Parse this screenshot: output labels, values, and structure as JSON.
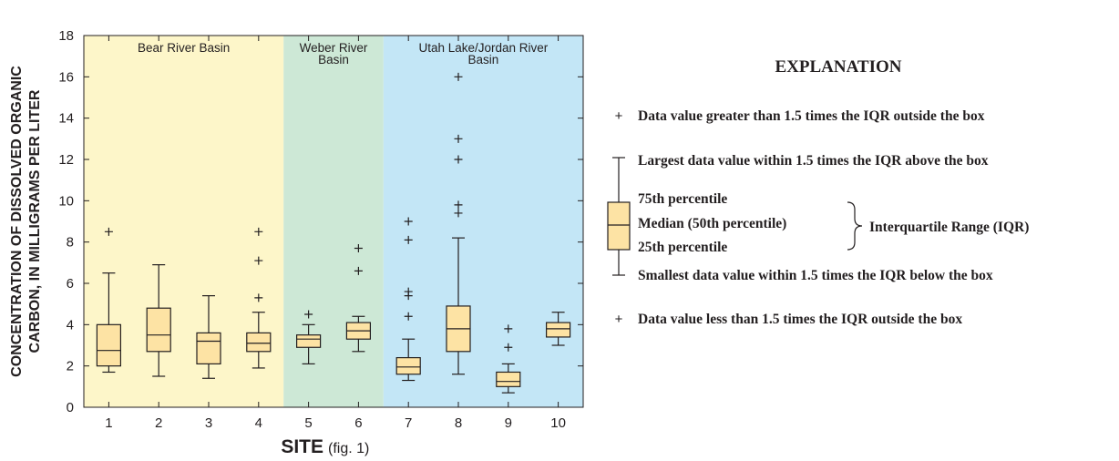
{
  "chart_data": {
    "type": "box",
    "xlabel": "SITE",
    "xlabel_note": "(fig. 1)",
    "ylabel_lines": [
      "CONCENTRATION OF DISSOLVED ORGANIC",
      "CARBON, IN MILLIGRAMS PER LITER"
    ],
    "ylim": [
      0,
      18
    ],
    "yticks": [
      0,
      2,
      4,
      6,
      8,
      10,
      12,
      14,
      16,
      18
    ],
    "categories": [
      "1",
      "2",
      "3",
      "4",
      "5",
      "6",
      "7",
      "8",
      "9",
      "10"
    ],
    "grid": false,
    "basins": [
      {
        "label_lines": [
          "Bear River Basin"
        ],
        "sites": [
          "1",
          "2",
          "3",
          "4"
        ],
        "color": "#fdf6c9"
      },
      {
        "label_lines": [
          "Weber River",
          "Basin"
        ],
        "sites": [
          "5",
          "6"
        ],
        "color": "#cde8d6"
      },
      {
        "label_lines": [
          "Utah Lake/Jordan River",
          "Basin"
        ],
        "sites": [
          "7",
          "8",
          "9",
          "10"
        ],
        "color": "#c3e6f6"
      }
    ],
    "boxes": [
      {
        "site": "1",
        "whisker_low": 1.7,
        "q1": 2.0,
        "median": 2.75,
        "q3": 4.0,
        "whisker_high": 6.5,
        "outliers": [
          8.5
        ]
      },
      {
        "site": "2",
        "whisker_low": 1.5,
        "q1": 2.7,
        "median": 3.5,
        "q3": 4.8,
        "whisker_high": 6.9,
        "outliers": []
      },
      {
        "site": "3",
        "whisker_low": 1.4,
        "q1": 2.1,
        "median": 3.2,
        "q3": 3.6,
        "whisker_high": 5.4,
        "outliers": []
      },
      {
        "site": "4",
        "whisker_low": 1.9,
        "q1": 2.7,
        "median": 3.1,
        "q3": 3.6,
        "whisker_high": 4.6,
        "outliers": [
          5.3,
          7.1,
          8.5
        ]
      },
      {
        "site": "5",
        "whisker_low": 2.1,
        "q1": 2.9,
        "median": 3.3,
        "q3": 3.5,
        "whisker_high": 4.0,
        "outliers": [
          4.5
        ]
      },
      {
        "site": "6",
        "whisker_low": 2.7,
        "q1": 3.3,
        "median": 3.7,
        "q3": 4.1,
        "whisker_high": 4.4,
        "outliers": [
          6.6,
          7.7
        ]
      },
      {
        "site": "7",
        "whisker_low": 1.3,
        "q1": 1.6,
        "median": 1.95,
        "q3": 2.4,
        "whisker_high": 3.3,
        "outliers": [
          4.4,
          5.4,
          5.6,
          8.1,
          9.0
        ]
      },
      {
        "site": "8",
        "whisker_low": 1.6,
        "q1": 2.7,
        "median": 3.8,
        "q3": 4.9,
        "whisker_high": 8.2,
        "outliers": [
          9.4,
          9.8,
          12.0,
          13.0,
          16.0
        ]
      },
      {
        "site": "9",
        "whisker_low": 0.7,
        "q1": 1.0,
        "median": 1.25,
        "q3": 1.7,
        "whisker_high": 2.1,
        "outliers": [
          2.9,
          3.8
        ]
      },
      {
        "site": "10",
        "whisker_low": 3.0,
        "q1": 3.4,
        "median": 3.8,
        "q3": 4.1,
        "whisker_high": 4.6,
        "outliers": []
      }
    ],
    "box_fill": "#fde3a4",
    "legend": {
      "title": "EXPLANATION",
      "outlier_above": "Data value greater than 1.5 times the IQR outside the box",
      "whisker_high": "Largest data value within 1.5 times the IQR above the box",
      "q3": "75th percentile",
      "median": "Median (50th percentile)",
      "q1": "25th percentile",
      "iqr": "Interquartile Range (IQR)",
      "whisker_low": "Smallest data value within 1.5 times the IQR below the box",
      "outlier_below": "Data value less than 1.5 times the IQR outside the box"
    }
  }
}
